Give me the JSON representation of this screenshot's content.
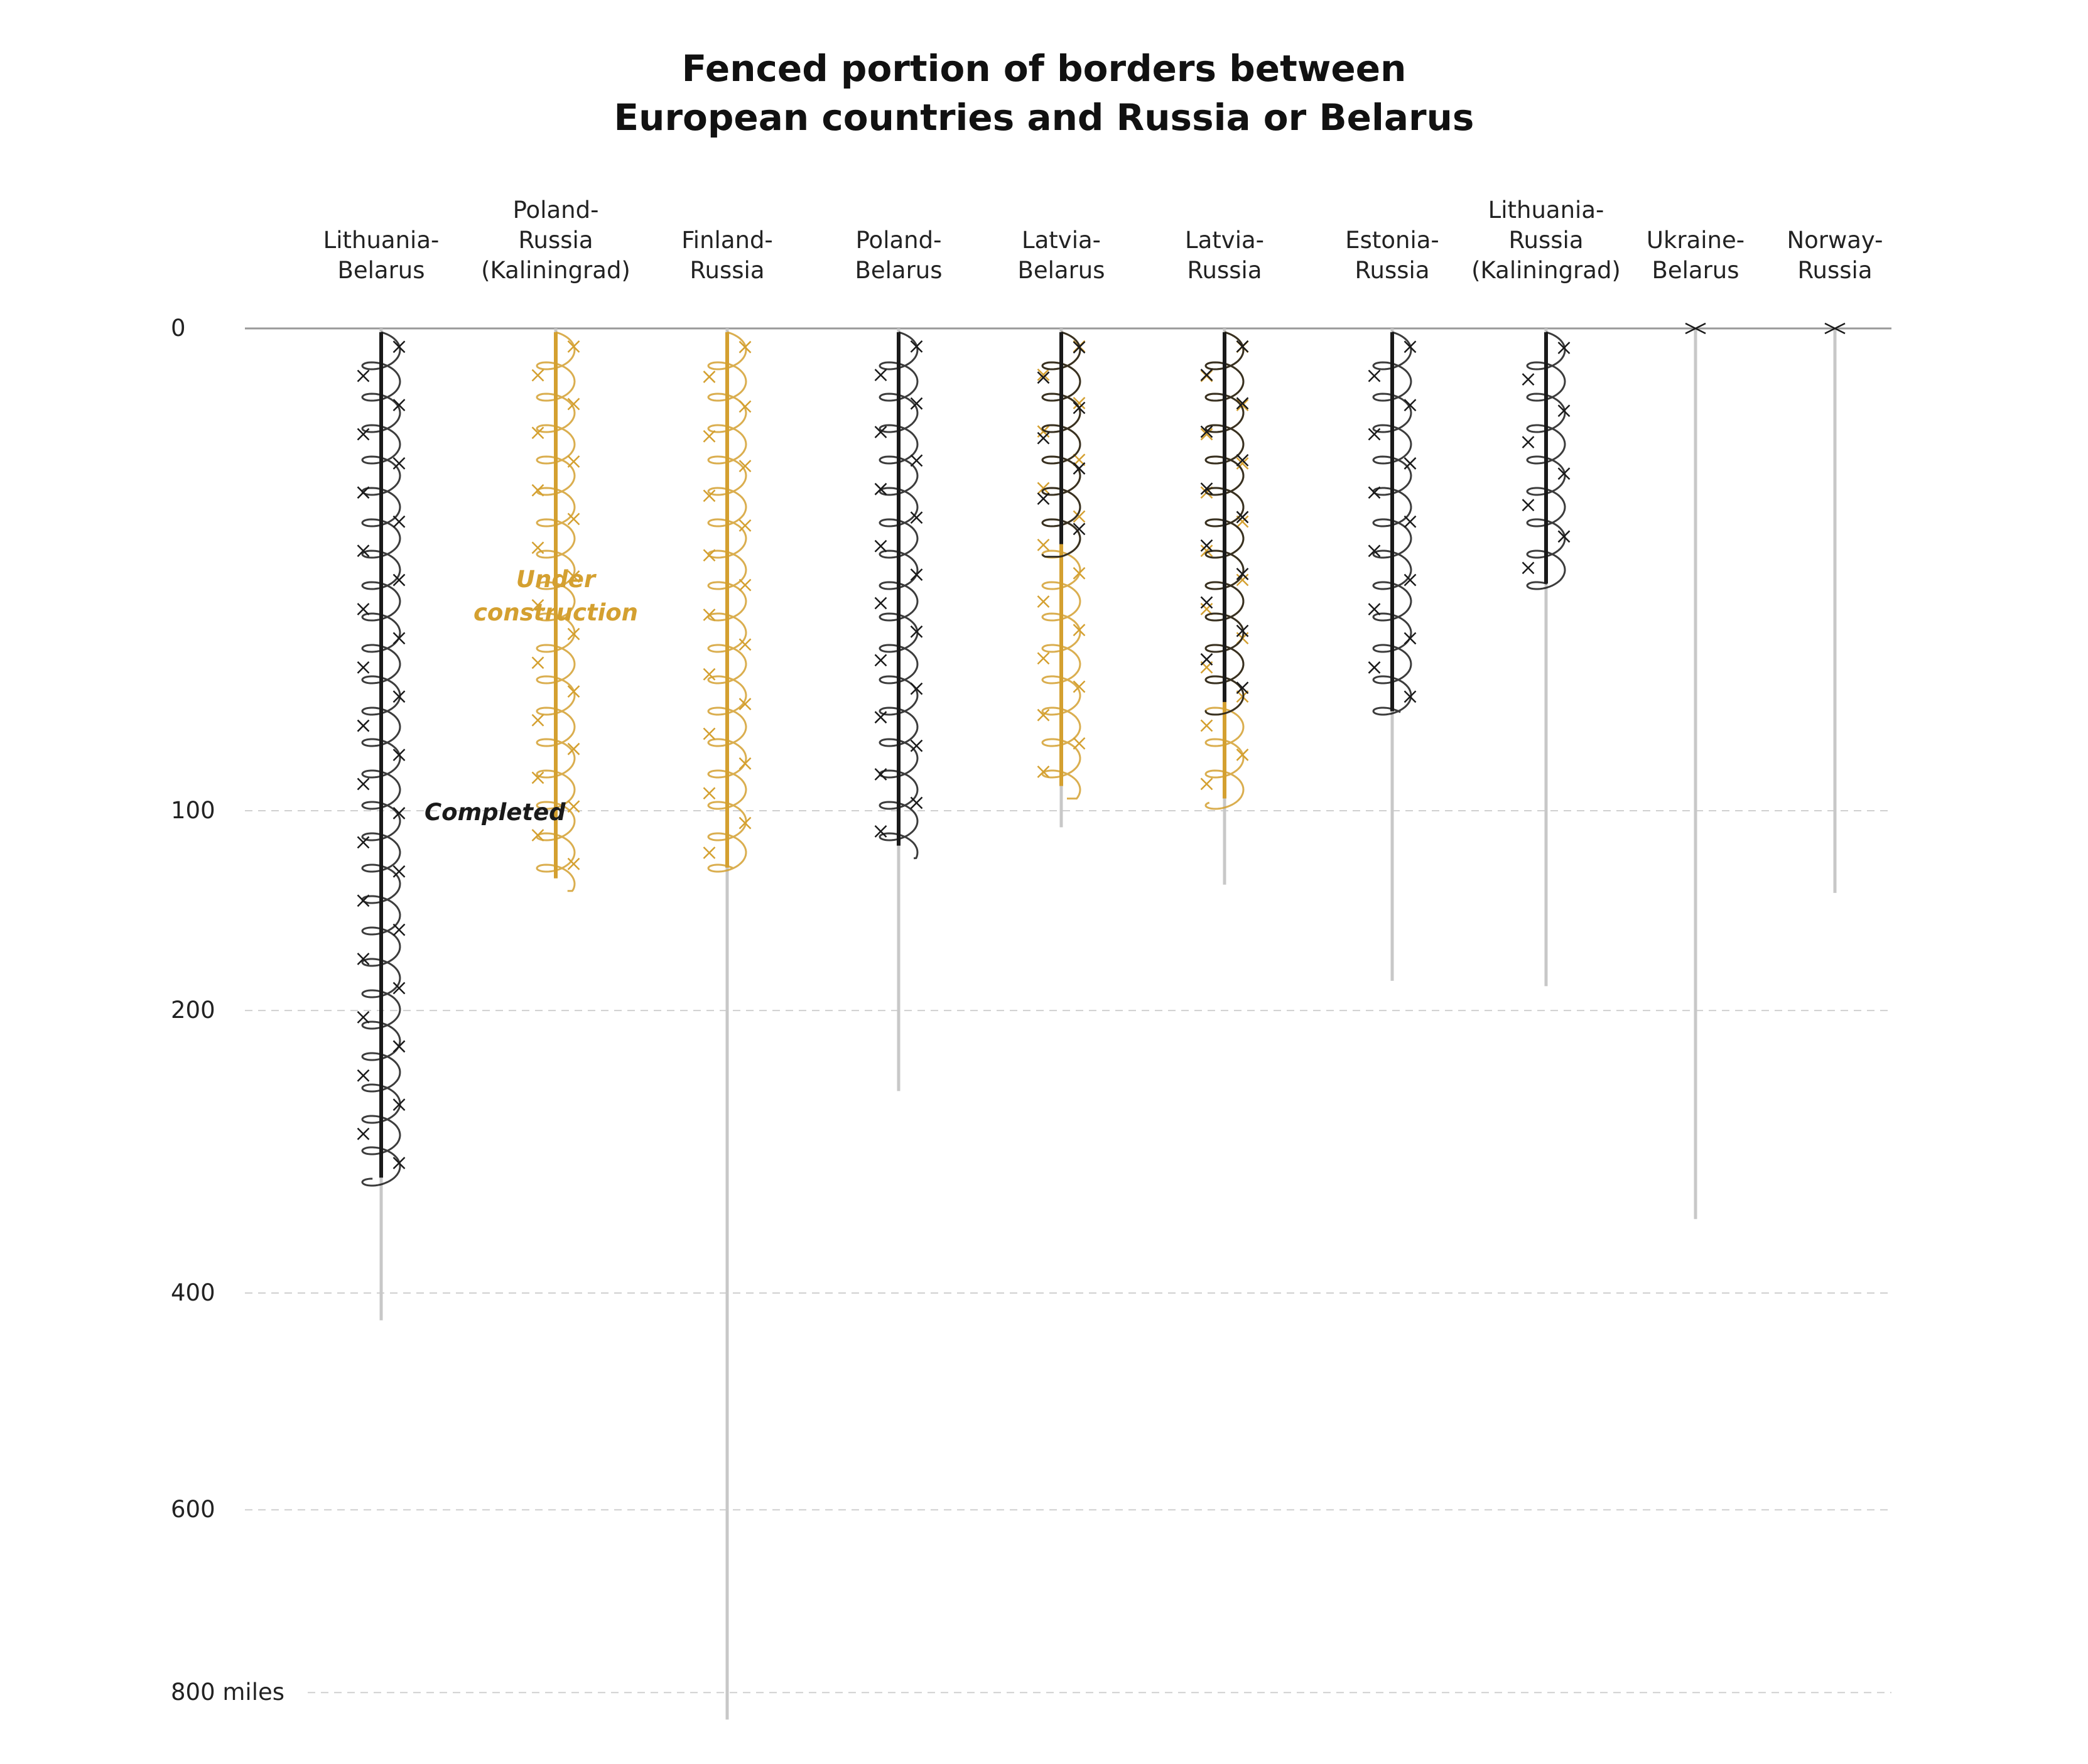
{
  "chart_data": {
    "type": "bar",
    "title_lines": [
      "Fenced portion of borders between",
      "European countries and Russia or Belarus"
    ],
    "y_unit": "miles",
    "y_ticks": [
      0,
      100,
      200,
      400,
      600,
      800
    ],
    "y_tick_labels": [
      "0",
      "100",
      "200",
      "400",
      "600",
      "800 miles"
    ],
    "y_scale": "sqrt",
    "ylim": [
      0,
      830
    ],
    "grid": true,
    "categories": [
      [
        "Lithuania-",
        "Belarus"
      ],
      [
        "Poland-",
        "Russia",
        "(Kaliningrad)"
      ],
      [
        "Finland-",
        "Russia"
      ],
      [
        "Poland-",
        "Belarus"
      ],
      [
        "Latvia-",
        "Belarus"
      ],
      [
        "Latvia-",
        "Russia"
      ],
      [
        "Estonia-",
        "Russia"
      ],
      [
        "Lithuania-",
        "Russia",
        "(Kaliningrad)"
      ],
      [
        "Ukraine-",
        "Belarus"
      ],
      [
        "Norway-",
        "Russia"
      ]
    ],
    "series": [
      {
        "name": "Border length",
        "values": [
          423,
          130,
          832,
          250,
          107,
          133,
          183,
          186,
          341,
          137
        ]
      },
      {
        "name": "Completed",
        "values": [
          310,
          0,
          0,
          115,
          20,
          60,
          63,
          28,
          0,
          0
        ]
      },
      {
        "name": "Under construction",
        "values": [
          0,
          130,
          125,
          0,
          90,
          95,
          0,
          0,
          0,
          0
        ]
      }
    ],
    "annotations": [
      {
        "text": "Under",
        "series": "Under construction",
        "category_index": 1,
        "line": 1
      },
      {
        "text": "construction",
        "series": "Under construction",
        "category_index": 1,
        "line": 2
      },
      {
        "text": "Completed",
        "series": "Completed",
        "category_index": 0,
        "line": 1
      }
    ],
    "colors": {
      "completed": "#1a1a1a",
      "under_construction": "#d4a030",
      "border": "#c8c8c8",
      "grid": "#d0d0d0",
      "baseline": "#999999",
      "text": "#222222"
    }
  }
}
